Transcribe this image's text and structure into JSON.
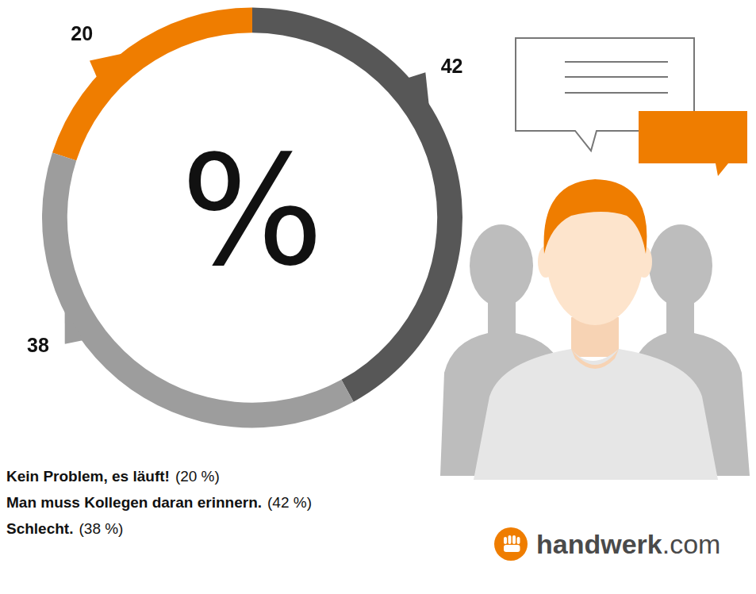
{
  "chart_data": {
    "type": "doughnut",
    "center_text": "%",
    "categories": [
      "Kein Problem, es läuft!",
      "Man muss Kollegen daran erinnern.",
      "Schlecht."
    ],
    "values": [
      20,
      42,
      38
    ],
    "colors": [
      "#ef7d00",
      "#575757",
      "#9d9d9d"
    ],
    "data_labels": true,
    "legend": "bottom",
    "legend_value_labels": [
      "(20 %)",
      "(42 %)",
      "(38 %)"
    ]
  },
  "logo": {
    "name": "handwerk",
    "suffix": ".com"
  }
}
